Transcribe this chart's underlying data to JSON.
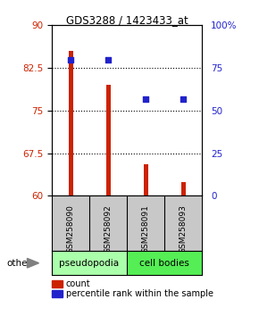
{
  "title": "GDS3288 / 1423433_at",
  "samples": [
    "GSM258090",
    "GSM258092",
    "GSM258091",
    "GSM258093"
  ],
  "groups": [
    "pseudopodia",
    "pseudopodia",
    "cell bodies",
    "cell bodies"
  ],
  "count_values": [
    85.5,
    79.5,
    65.5,
    62.5
  ],
  "percentile_values": [
    80,
    80,
    57,
    57
  ],
  "ylim_left": [
    60,
    90
  ],
  "ylim_right": [
    0,
    100
  ],
  "yticks_left": [
    60,
    67.5,
    75,
    82.5,
    90
  ],
  "yticks_right": [
    0,
    25,
    50,
    75,
    100
  ],
  "yticklabels_right": [
    "0",
    "25",
    "50",
    "75",
    "100%"
  ],
  "bar_color": "#cc2200",
  "dot_color": "#2222cc",
  "bar_bottom": 60,
  "pseudopodia_color": "#aaffaa",
  "cell_bodies_color": "#55ee55",
  "gray_bg": "#c8c8c8",
  "legend_count_label": "count",
  "legend_pct_label": "percentile rank within the sample",
  "other_label": "other",
  "bar_width": 0.12,
  "dot_size": 25
}
